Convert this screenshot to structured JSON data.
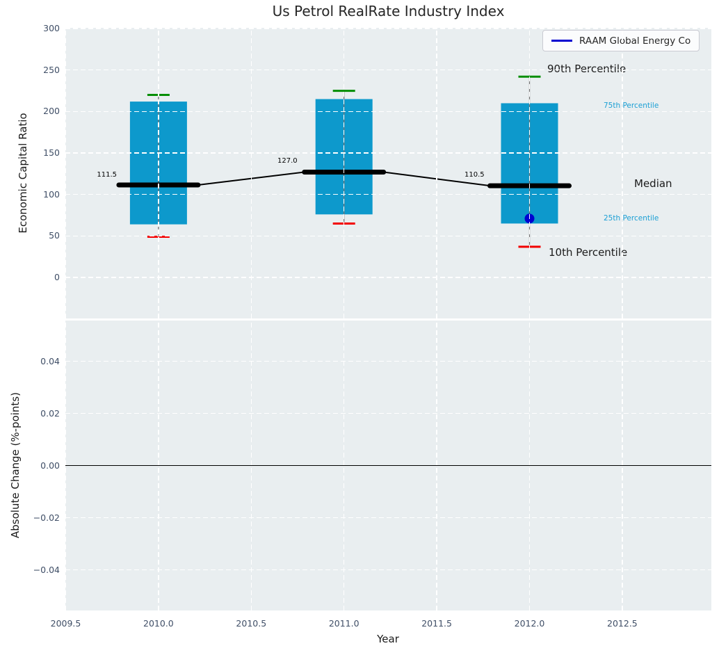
{
  "title": "Us Petrol RealRate Industry Index",
  "legend": {
    "label": "RAAM Global Energy Co"
  },
  "axes": {
    "top": {
      "ylabel": "Economic Capital Ratio",
      "ytick_labels": [
        "300",
        "250",
        "200",
        "150",
        "100",
        "50",
        "0"
      ]
    },
    "bottom": {
      "ylabel": "Absolute Change (%-points)",
      "ytick_labels": [
        "0.04",
        "0.02",
        "0.00",
        "−0.02",
        "−0.04"
      ]
    },
    "x": {
      "label": "Year",
      "tick_labels": [
        "2009.5",
        "2010.0",
        "2010.5",
        "2011.0",
        "2011.5",
        "2012.0",
        "2012.5"
      ]
    }
  },
  "annotations": {
    "p90": "90th Percentile",
    "p75": "75th Percentile",
    "median": "Median",
    "p25": "25th Percentile",
    "p10": "10th Percentile"
  },
  "colors": {
    "axes_bg": "#e9eef0",
    "grid": "#ffffff",
    "bar": "#0d99cc",
    "whisker": "#777777",
    "p90_cap": "#068e06",
    "p10_cap": "#f20000",
    "median_line": "#000000",
    "overlay_point": "#0000d0",
    "percentile_label": "#1b9fd4",
    "tick_label": "#3f4e66"
  },
  "chart_data": [
    {
      "type": "box",
      "title": "Us Petrol RealRate Industry Index",
      "xlabel": "Year",
      "ylabel": "Economic Capital Ratio",
      "x": [
        2010,
        2011,
        2012
      ],
      "xticks": [
        2009.5,
        2010,
        2010.5,
        2011,
        2011.5,
        2012,
        2012.5
      ],
      "yticks": [
        300,
        250,
        200,
        150,
        100,
        50,
        0
      ],
      "xlim": [
        2009.5,
        2012.98
      ],
      "ylim": [
        -49,
        303
      ],
      "grid": true,
      "legend_position": "upper right",
      "series": [
        {
          "name": "90th Percentile",
          "values": [
            220,
            225,
            242
          ]
        },
        {
          "name": "75th Percentile",
          "values": [
            212,
            215,
            210
          ]
        },
        {
          "name": "Median",
          "values": [
            111.5,
            127.0,
            110.5
          ]
        },
        {
          "name": "25th Percentile",
          "values": [
            64,
            76,
            65
          ]
        },
        {
          "name": "10th Percentile",
          "values": [
            49,
            65,
            37
          ]
        }
      ],
      "median_labels": [
        "111.5",
        "127.0",
        "110.5"
      ],
      "overlay_point": {
        "name": "RAAM Global Energy Co",
        "x": 2012,
        "y": 71
      }
    },
    {
      "type": "line",
      "xlabel": "Year",
      "ylabel": "Absolute Change (%-points)",
      "xticks": [
        2009.5,
        2010,
        2010.5,
        2011,
        2011.5,
        2012,
        2012.5
      ],
      "yticks": [
        0.04,
        0.02,
        0,
        -0.02,
        -0.04
      ],
      "ylim": [
        -0.0555,
        0.0555
      ],
      "grid": true,
      "zero_line": 0,
      "series": []
    }
  ]
}
